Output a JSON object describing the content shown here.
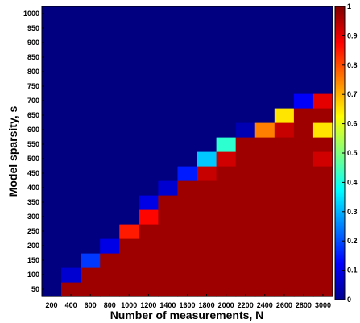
{
  "chart_data": {
    "type": "heatmap",
    "xlabel": "Number of measurements, N",
    "ylabel": "Model sparsity, s",
    "x": [
      200,
      400,
      600,
      800,
      1000,
      1200,
      1400,
      1600,
      1800,
      2000,
      2200,
      2400,
      2600,
      2800,
      3000
    ],
    "y": [
      50,
      100,
      150,
      200,
      250,
      300,
      350,
      400,
      450,
      500,
      550,
      600,
      650,
      700,
      750,
      800,
      850,
      900,
      950,
      1000
    ],
    "x_tick_labels": [
      "200",
      "400",
      "600",
      "800",
      "1000",
      "1200",
      "1400",
      "1600",
      "1800",
      "2000",
      "2200",
      "2400",
      "2600",
      "2800",
      "3000"
    ],
    "y_tick_labels": [
      "50",
      "100",
      "150",
      "200",
      "250",
      "300",
      "350",
      "400",
      "450",
      "500",
      "550",
      "600",
      "650",
      "700",
      "750",
      "800",
      "850",
      "900",
      "950",
      "1000"
    ],
    "values": [
      [
        0,
        0.97,
        0.97,
        0.97,
        0.97,
        0.97,
        0.97,
        0.97,
        0.97,
        0.97,
        0.97,
        0.97,
        0.97,
        0.97,
        0.97
      ],
      [
        0,
        0.08,
        0.97,
        0.97,
        0.97,
        0.97,
        0.97,
        0.97,
        0.97,
        0.97,
        0.97,
        0.97,
        0.97,
        0.97,
        0.97
      ],
      [
        0,
        0,
        0.18,
        0.97,
        0.97,
        0.97,
        0.97,
        0.97,
        0.97,
        0.97,
        0.97,
        0.97,
        0.97,
        0.97,
        0.97
      ],
      [
        0,
        0,
        0,
        0.1,
        0.97,
        0.97,
        0.97,
        0.97,
        0.97,
        0.97,
        0.97,
        0.97,
        0.97,
        0.97,
        0.97
      ],
      [
        0,
        0,
        0,
        0,
        0.85,
        0.97,
        0.97,
        0.97,
        0.97,
        0.97,
        0.97,
        0.97,
        0.97,
        0.97,
        0.97
      ],
      [
        0,
        0,
        0,
        0,
        0,
        0.87,
        0.97,
        0.97,
        0.97,
        0.97,
        0.97,
        0.97,
        0.97,
        0.97,
        0.97
      ],
      [
        0,
        0,
        0,
        0,
        0,
        0.1,
        0.97,
        0.97,
        0.97,
        0.97,
        0.97,
        0.97,
        0.97,
        0.97,
        0.97
      ],
      [
        0,
        0,
        0,
        0,
        0,
        0,
        0.08,
        0.97,
        0.97,
        0.97,
        0.97,
        0.97,
        0.97,
        0.97,
        0.97
      ],
      [
        0,
        0,
        0,
        0,
        0,
        0,
        0,
        0.15,
        0.93,
        0.97,
        0.97,
        0.97,
        0.97,
        0.97,
        0.97
      ],
      [
        0,
        0,
        0,
        0,
        0,
        0,
        0,
        0,
        0.32,
        0.92,
        0.97,
        0.97,
        0.97,
        0.97,
        0.92
      ],
      [
        0,
        0,
        0,
        0,
        0,
        0,
        0,
        0,
        0,
        0.42,
        0.97,
        0.97,
        0.97,
        0.97,
        0.97
      ],
      [
        0,
        0,
        0,
        0,
        0,
        0,
        0,
        0,
        0,
        0,
        0.05,
        0.75,
        0.93,
        0.97,
        0.65
      ],
      [
        0,
        0,
        0,
        0,
        0,
        0,
        0,
        0,
        0,
        0,
        0,
        0,
        0.65,
        0.97,
        0.97
      ],
      [
        0,
        0,
        0,
        0,
        0,
        0,
        0,
        0,
        0,
        0,
        0,
        0,
        0,
        0.12,
        0.9
      ],
      [
        0,
        0,
        0,
        0,
        0,
        0,
        0,
        0,
        0,
        0,
        0,
        0,
        0,
        0,
        0
      ],
      [
        0,
        0,
        0,
        0,
        0,
        0,
        0,
        0,
        0,
        0,
        0,
        0,
        0,
        0,
        0
      ],
      [
        0,
        0,
        0,
        0,
        0,
        0,
        0,
        0,
        0,
        0,
        0,
        0,
        0,
        0,
        0
      ],
      [
        0,
        0,
        0,
        0,
        0,
        0,
        0,
        0,
        0,
        0,
        0,
        0,
        0,
        0,
        0
      ],
      [
        0,
        0,
        0,
        0,
        0,
        0,
        0,
        0,
        0,
        0,
        0,
        0,
        0,
        0,
        0
      ],
      [
        0,
        0,
        0,
        0,
        0,
        0,
        0,
        0,
        0,
        0,
        0,
        0,
        0,
        0,
        0
      ]
    ],
    "colormap": "jet",
    "colorbar": {
      "range": [
        0,
        1
      ],
      "tick_values": [
        0,
        0.1,
        0.2,
        0.3,
        0.4,
        0.5,
        0.6,
        0.7,
        0.8,
        0.9,
        1
      ],
      "tick_labels": [
        "0",
        "0.1",
        "0.2",
        "0.3",
        "0.4",
        "0.5",
        "0.6",
        "0.7",
        "0.8",
        "0.9",
        "1"
      ]
    },
    "grid": false
  }
}
